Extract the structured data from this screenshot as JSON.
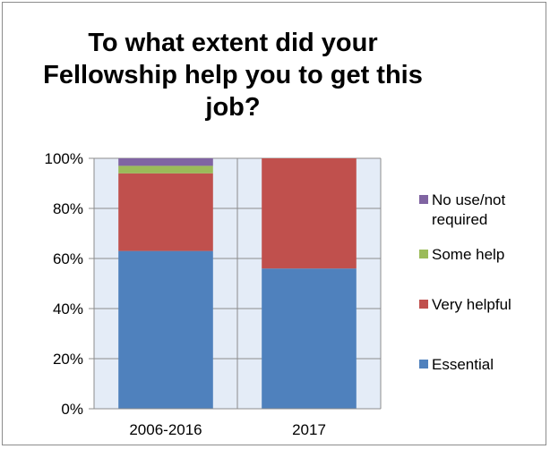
{
  "chart_data": {
    "type": "bar",
    "stacked": true,
    "percent": true,
    "title": "To what extent did your Fellowship help you to get this job?",
    "categories": [
      "2006-2016",
      "2017"
    ],
    "series": [
      {
        "name": "Essential",
        "color": "#4f81bd",
        "values": [
          63,
          56
        ]
      },
      {
        "name": "Very helpful",
        "color": "#c0504d",
        "values": [
          31,
          44
        ]
      },
      {
        "name": "Some help",
        "color": "#9bbb59",
        "values": [
          3,
          0
        ]
      },
      {
        "name": "No use/not required",
        "color": "#8064a2",
        "values": [
          3,
          0
        ]
      }
    ],
    "ylim": [
      0,
      100
    ],
    "yticks": [
      "0%",
      "20%",
      "40%",
      "60%",
      "80%",
      "100%"
    ],
    "legend_position": "right",
    "legend_order": [
      "No use/not required",
      "Some help",
      "Very helpful",
      "Essential"
    ],
    "plot_background": "#e4ecf7",
    "grid": true
  }
}
